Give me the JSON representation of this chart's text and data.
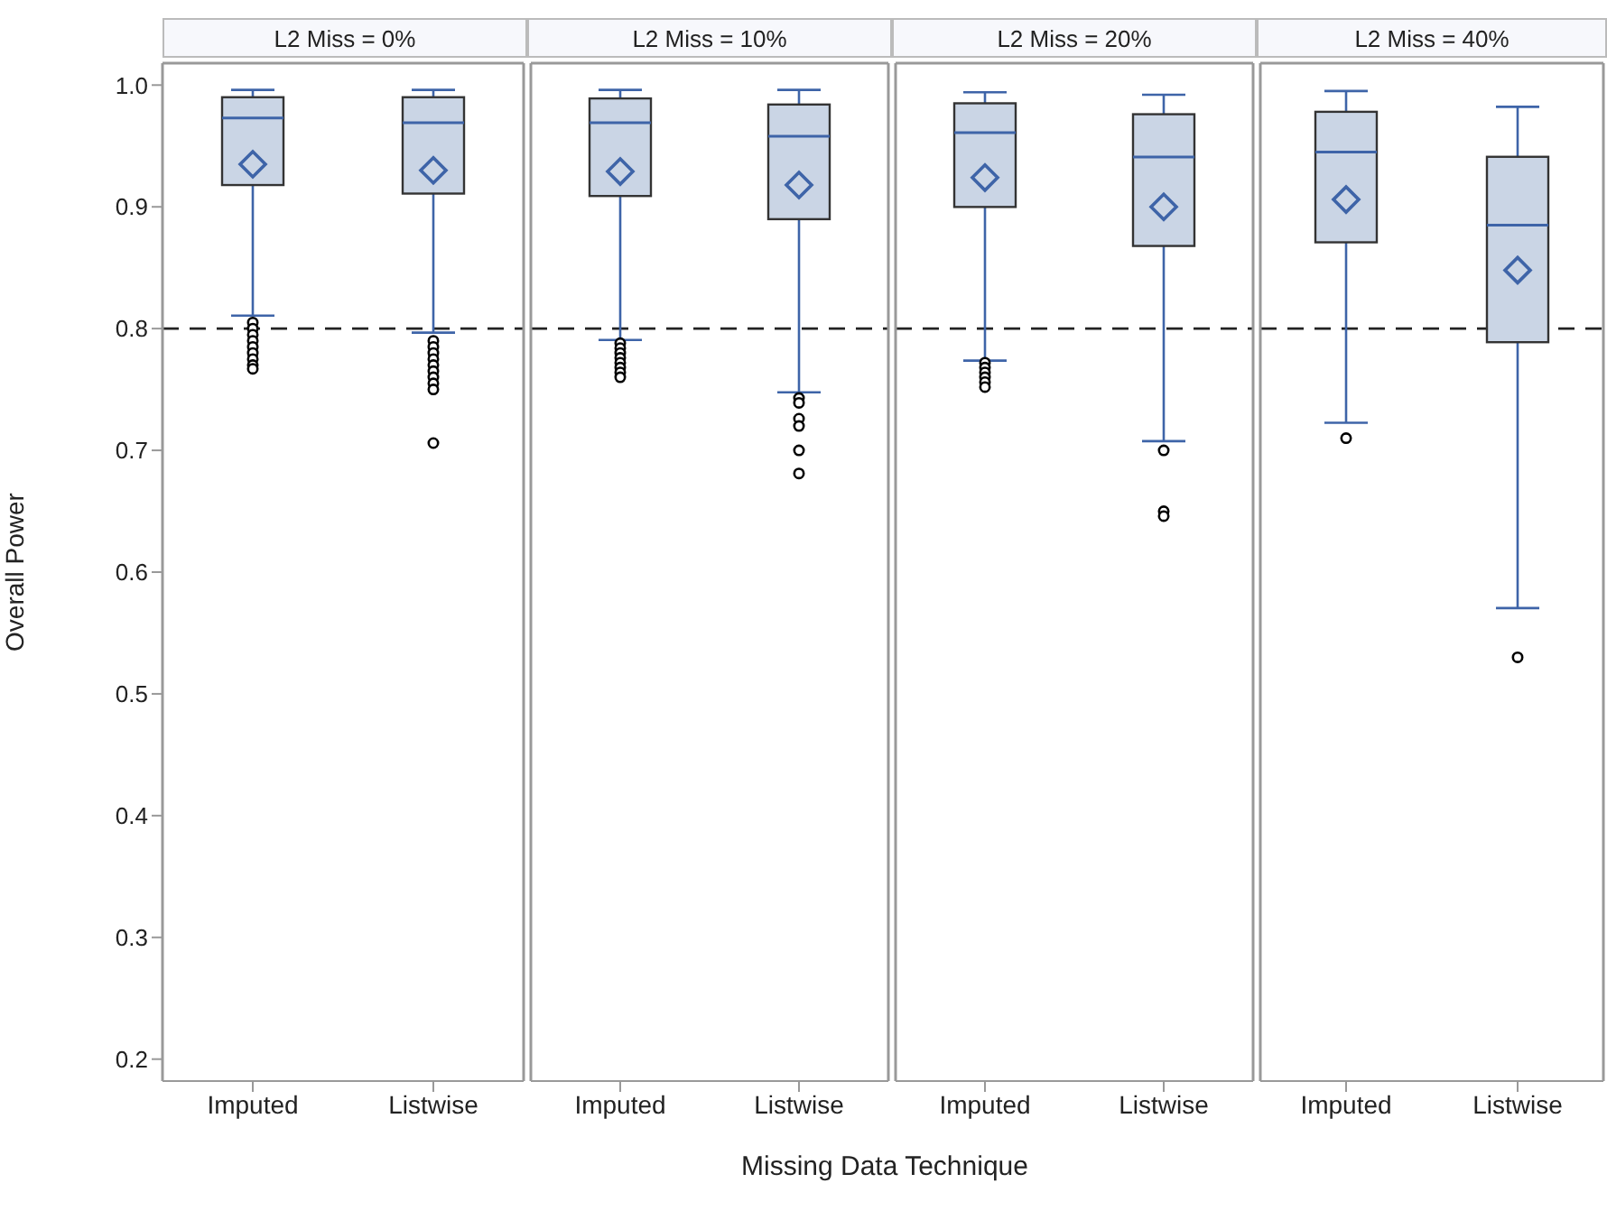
{
  "chart_data": [
    {
      "type": "box",
      "title": "L2 Miss = 0%",
      "ylabel": "Overall Power",
      "categories": [
        "Imputed",
        "Listwise"
      ],
      "color": "#cad5e5",
      "ylim": [
        0.182,
        1.018
      ],
      "yticks": [
        0.2,
        0.3,
        0.4,
        0.5,
        0.6,
        0.7,
        0.8,
        0.9,
        {
          "value": 1,
          "label": "1.0"
        }
      ],
      "ref_lines": [
        {
          "axis": "y",
          "value": 0.8,
          "line_style": "dashed"
        }
      ],
      "boxes": [
        {
          "low": 0.811,
          "q1": 0.918,
          "median": 0.973,
          "q3": 0.99,
          "high": 0.996,
          "mean": 0.935,
          "outliers": [
            0.805,
            0.8,
            0.795,
            0.79,
            0.785,
            0.78,
            0.775,
            0.77,
            0.767
          ]
        },
        {
          "low": 0.797,
          "q1": 0.911,
          "median": 0.969,
          "q3": 0.99,
          "high": 0.996,
          "mean": 0.93,
          "outliers": [
            0.79,
            0.785,
            0.78,
            0.775,
            0.77,
            0.765,
            0.76,
            0.755,
            0.75,
            0.706
          ]
        }
      ]
    },
    {
      "type": "box",
      "title": "L2 Miss = 10%",
      "xlabel": "Missing Data Technique",
      "categories": [
        "Imputed",
        "Listwise"
      ],
      "color": "#cad5e5",
      "ylim": [
        0.182,
        1.018
      ],
      "tick_labels": "x",
      "ref_lines": [
        {
          "axis": "y",
          "value": 0.8,
          "line_style": "dashed"
        }
      ],
      "boxes": [
        {
          "low": 0.791,
          "q1": 0.909,
          "median": 0.969,
          "q3": 0.989,
          "high": 0.996,
          "mean": 0.929,
          "outliers": [
            0.788,
            0.784,
            0.78,
            0.776,
            0.772,
            0.768,
            0.764,
            0.76
          ]
        },
        {
          "low": 0.748,
          "q1": 0.89,
          "median": 0.958,
          "q3": 0.984,
          "high": 0.996,
          "mean": 0.918,
          "outliers": [
            0.743,
            0.739,
            0.726,
            0.72,
            0.7,
            0.681
          ]
        }
      ]
    },
    {
      "type": "box",
      "title": "L2 Miss = 20%",
      "categories": [
        "Imputed",
        "Listwise"
      ],
      "color": "#cad5e5",
      "ylim": [
        0.182,
        1.018
      ],
      "tick_labels": "x",
      "ref_lines": [
        {
          "axis": "y",
          "value": 0.8,
          "line_style": "dashed"
        }
      ],
      "boxes": [
        {
          "low": 0.774,
          "q1": 0.9,
          "median": 0.961,
          "q3": 0.985,
          "high": 0.994,
          "mean": 0.924,
          "outliers": [
            0.772,
            0.768,
            0.764,
            0.76,
            0.756,
            0.752
          ]
        },
        {
          "low": 0.708,
          "q1": 0.868,
          "median": 0.941,
          "q3": 0.976,
          "high": 0.992,
          "mean": 0.9,
          "outliers": [
            0.7,
            0.65,
            0.646
          ]
        }
      ]
    },
    {
      "type": "box",
      "title": "L2 Miss = 40%",
      "categories": [
        "Imputed",
        "Listwise"
      ],
      "color": "#cad5e5",
      "ylim": [
        0.182,
        1.018
      ],
      "tick_labels": "x",
      "ref_lines": [
        {
          "axis": "y",
          "value": 0.8,
          "line_style": "dashed"
        }
      ],
      "boxes": [
        {
          "low": 0.723,
          "q1": 0.871,
          "median": 0.945,
          "q3": 0.978,
          "high": 0.995,
          "mean": 0.906,
          "outliers": [
            0.71
          ]
        },
        {
          "low": 0.571,
          "q1": 0.789,
          "median": 0.885,
          "q3": 0.941,
          "high": 0.982,
          "mean": 0.848,
          "outliers": [
            0.53
          ]
        }
      ]
    }
  ]
}
